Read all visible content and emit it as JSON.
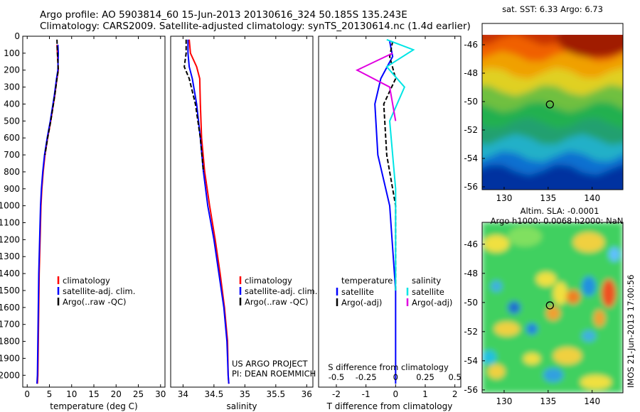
{
  "header": {
    "line1": "Argo profile: AO 5903814_60 15-Jun-2013 20130616_324 50.185S 135.243E",
    "line2": "Climatology: CARS2009. Satellite-adjusted climatology: synTS_20130614.nc (1.4d earlier)"
  },
  "colors": {
    "climatology": "#ff0000",
    "satellite": "#0000ff",
    "argo": "#000000",
    "salinity_satellite": "#00e5e5",
    "salinity_argo": "#e000e0"
  },
  "chart_data": [
    {
      "type": "line",
      "id": "temperature",
      "xlabel": "temperature (deg C)",
      "ylabel": "",
      "xlim": [
        -1,
        31
      ],
      "xticks": [
        0,
        5,
        10,
        15,
        20,
        25,
        30
      ],
      "ylim": [
        0,
        2070
      ],
      "yticks": [
        0,
        100,
        200,
        300,
        400,
        500,
        600,
        700,
        800,
        900,
        1000,
        1100,
        1200,
        1300,
        1400,
        1500,
        1600,
        1700,
        1800,
        1900,
        2000
      ],
      "legend": [
        "climatology",
        "satellite-adj. clim.",
        "Argo(..raw -QC)"
      ],
      "series": [
        {
          "name": "climatology",
          "color": "#ff0000",
          "x": [
            6.7,
            6.8,
            7.0,
            6.7,
            6.2,
            5.3,
            4.6,
            4.0,
            3.6,
            3.3,
            3.1,
            2.9,
            2.7,
            2.6,
            2.5,
            2.4,
            2.3
          ],
          "y": [
            50,
            100,
            200,
            250,
            350,
            500,
            600,
            700,
            800,
            900,
            1000,
            1200,
            1400,
            1600,
            1800,
            2000,
            2050
          ]
        },
        {
          "name": "satellite-adj. clim.",
          "color": "#0000ff",
          "x": [
            6.9,
            7.0,
            6.9,
            6.6,
            6.1,
            5.2,
            4.5,
            3.9,
            3.5,
            3.2,
            3.0,
            2.8,
            2.6,
            2.5,
            2.4,
            2.3,
            2.2
          ],
          "y": [
            50,
            100,
            200,
            250,
            350,
            500,
            600,
            700,
            800,
            900,
            1000,
            1200,
            1400,
            1600,
            1800,
            2000,
            2050
          ]
        },
        {
          "name": "Argo(..raw -QC)",
          "color": "#000000",
          "x": [
            6.7,
            6.8,
            7.0,
            6.7,
            6.2,
            5.3,
            4.6,
            4.0
          ],
          "y": [
            20,
            100,
            200,
            250,
            350,
            500,
            600,
            700
          ]
        }
      ]
    },
    {
      "type": "line",
      "id": "salinity",
      "xlabel": "salinity",
      "xlim": [
        33.8,
        36.1
      ],
      "xticks": [
        34,
        34.5,
        35,
        35.5,
        36
      ],
      "ylim": [
        0,
        2070
      ],
      "legend": [
        "climatology",
        "satellite-adj. clim.",
        "Argo(..raw -QC)"
      ],
      "annotations": [
        "US ARGO PROJECT",
        "PI: DEAN ROEMMICH"
      ],
      "series": [
        {
          "name": "climatology",
          "color": "#ff0000",
          "x": [
            34.1,
            34.12,
            34.22,
            34.27,
            34.28,
            34.3,
            34.35,
            34.43,
            34.52,
            34.6,
            34.67,
            34.72,
            34.73,
            34.74
          ],
          "y": [
            20,
            100,
            180,
            250,
            400,
            600,
            800,
            1000,
            1200,
            1400,
            1600,
            1800,
            2000,
            2050
          ]
        },
        {
          "name": "satellite-adj. clim.",
          "color": "#0000ff",
          "x": [
            34.08,
            34.08,
            34.1,
            34.15,
            34.22,
            34.28,
            34.33,
            34.4,
            34.5,
            34.58,
            34.66,
            34.71,
            34.73,
            34.74
          ],
          "y": [
            20,
            100,
            180,
            250,
            400,
            600,
            800,
            1000,
            1200,
            1400,
            1600,
            1800,
            2000,
            2050
          ]
        },
        {
          "name": "Argo(..raw -QC)",
          "color": "#000000",
          "x": [
            34.05,
            34.05,
            34.02,
            34.1,
            34.2,
            34.28,
            34.33
          ],
          "y": [
            20,
            100,
            180,
            250,
            400,
            600,
            800
          ]
        }
      ]
    },
    {
      "type": "line",
      "id": "difference",
      "xlabel": "T difference from climatology",
      "xlabel_top": "S difference from climatology",
      "xlim": [
        -2.6,
        2.2
      ],
      "xticks": [
        -2,
        -1,
        0,
        1,
        2
      ],
      "xtick_labels_top": [
        "-0.5",
        "-0.25",
        "0",
        "0.25",
        "0.5"
      ],
      "ylim": [
        0,
        2070
      ],
      "legend_titles": [
        "temperature",
        "salinity"
      ],
      "legend": [
        "satellite",
        "Argo(-adj)",
        "satellite",
        "Argo(-adj)"
      ],
      "series": [
        {
          "name": "temperature satellite",
          "color": "#0000ff",
          "x": [
            -0.2,
            -0.1,
            -0.5,
            -0.7,
            -0.6,
            -0.2,
            0.0,
            0.0
          ],
          "y": [
            30,
            120,
            250,
            400,
            700,
            1000,
            1500,
            2050
          ]
        },
        {
          "name": "temperature Argo(-adj)",
          "color": "#000000",
          "x": [
            -0.1,
            -0.2,
            0.0,
            -0.4,
            -0.3,
            0.0,
            0.0
          ],
          "y": [
            30,
            120,
            250,
            400,
            700,
            1000,
            1500
          ]
        },
        {
          "name": "salinity satellite",
          "color": "#00e5e5",
          "x": [
            -0.3,
            0.6,
            -0.3,
            0.3,
            -0.2,
            0.0,
            0.0
          ],
          "y": [
            20,
            80,
            180,
            300,
            500,
            900,
            1500
          ]
        },
        {
          "name": "salinity Argo(-adj)",
          "color": "#e000e0",
          "x": [
            -0.1,
            -1.3,
            -0.2,
            0.0
          ],
          "y": [
            100,
            200,
            300,
            500
          ]
        }
      ]
    },
    {
      "type": "heatmap",
      "id": "sst-map",
      "title": "sat. SST: 6.33  Argo: 6.73",
      "xlim": [
        127.5,
        143.5
      ],
      "xticks": [
        130,
        135,
        140
      ],
      "ylim": [
        -56.2,
        -44.5
      ],
      "yticks": [
        -46,
        -48,
        -50,
        -52,
        -54,
        -56
      ],
      "marker": [
        135.2,
        -50.2
      ]
    },
    {
      "type": "heatmap",
      "id": "sla-map",
      "title": "Altim. SLA: -0.0001",
      "subtitle": "Argo h1000: 0.0068  h2000: NaN",
      "xlim": [
        127.5,
        143.5
      ],
      "xticks": [
        130,
        135,
        140
      ],
      "ylim": [
        -56.2,
        -44.5
      ],
      "yticks": [
        -46,
        -48,
        -50,
        -52,
        -54,
        -56
      ],
      "marker": [
        135.2,
        -50.2
      ]
    }
  ],
  "side_label": "IMOS 21-Jun-2013 17:00:56"
}
